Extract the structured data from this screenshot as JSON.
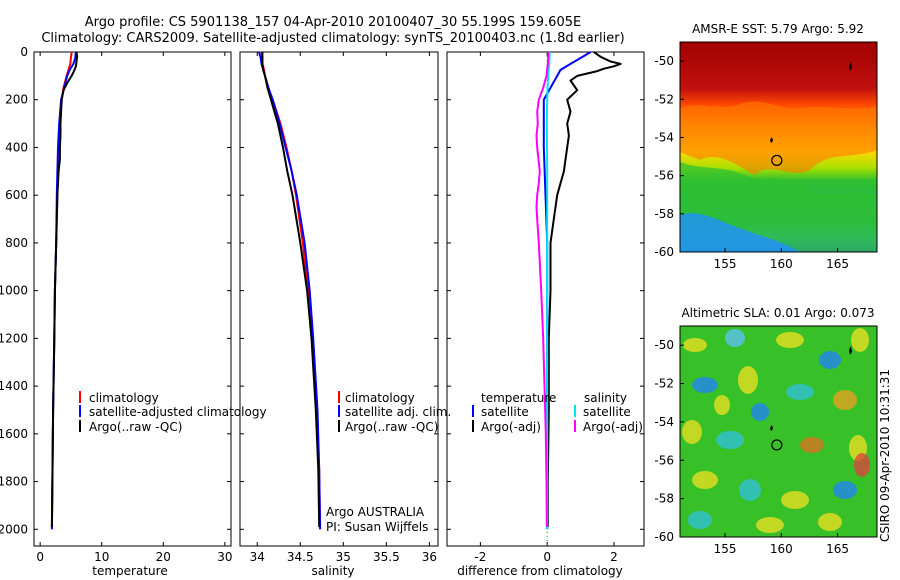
{
  "header": {
    "line1": "Argo profile: CS 5901138_157 04-Apr-2010 20100407_30 55.199S 159.605E",
    "line2": "Climatology: CARS2009. Satellite-adjusted climatology: synTS_20100403.nc (1.8d earlier)"
  },
  "credits": {
    "project": "Argo AUSTRALIA",
    "pi": "PI: Susan Wijffels",
    "stamp": "CSIRO 09-Apr-2010 10:31:31"
  },
  "colors": {
    "climatology": "#ff0000",
    "satellite": "#0000ff",
    "argo": "#000000",
    "salinity_satellite": "#00e5ee",
    "salinity_argo": "#ff00ff",
    "zero_line": "#00aa00"
  },
  "chart_data": [
    {
      "type": "line",
      "xlabel": "temperature",
      "ylabel": "",
      "xlim": [
        -1,
        31
      ],
      "ylim": [
        2070,
        0
      ],
      "xticks": [
        0,
        10,
        20,
        30
      ],
      "yticks": [
        0,
        200,
        400,
        600,
        800,
        1000,
        1200,
        1400,
        1600,
        1800,
        2000
      ],
      "legend_placement": "bottom-right",
      "series": [
        {
          "name": "climatology",
          "color": "#ff0000",
          "depth": [
            0,
            25,
            50,
            75,
            100,
            150,
            200,
            300,
            400,
            500,
            600,
            800,
            1000,
            1200,
            1500,
            1750,
            2000
          ],
          "values": [
            5.1,
            5.0,
            4.9,
            4.6,
            4.3,
            3.8,
            3.5,
            3.2,
            3.0,
            2.9,
            2.8,
            2.6,
            2.4,
            2.3,
            2.1,
            2.0,
            1.9
          ]
        },
        {
          "name": "satellite-adjusted climatology",
          "color": "#0000ff",
          "depth": [
            0,
            25,
            50,
            75,
            100,
            150,
            200,
            300,
            400,
            500,
            600,
            800,
            1000,
            1200,
            1500,
            1750,
            2000
          ],
          "values": [
            5.8,
            5.7,
            5.4,
            4.8,
            4.4,
            3.9,
            3.4,
            3.1,
            2.9,
            2.8,
            2.7,
            2.6,
            2.4,
            2.3,
            2.1,
            2.0,
            1.9
          ]
        },
        {
          "name": "Argo(..raw -QC)",
          "color": "#000000",
          "depth": [
            0,
            20,
            40,
            60,
            80,
            100,
            130,
            160,
            200,
            250,
            300,
            350,
            400,
            450,
            500,
            600,
            800,
            1000,
            1200,
            1500,
            1750,
            1990
          ],
          "values": [
            5.9,
            6.0,
            5.9,
            5.8,
            5.5,
            5.1,
            4.4,
            3.8,
            3.5,
            3.4,
            3.3,
            3.3,
            3.2,
            3.2,
            3.0,
            2.8,
            2.6,
            2.4,
            2.3,
            2.1,
            2.0,
            1.9
          ]
        }
      ]
    },
    {
      "type": "line",
      "xlabel": "salinity",
      "ylabel": "",
      "xlim": [
        33.8,
        36.1
      ],
      "ylim": [
        2070,
        0
      ],
      "xticks": [
        34,
        34.5,
        35,
        35.5,
        36
      ],
      "legend_placement": "bottom-right",
      "series": [
        {
          "name": "climatology",
          "color": "#ff0000",
          "depth": [
            0,
            25,
            50,
            75,
            100,
            150,
            200,
            300,
            400,
            500,
            600,
            800,
            1000,
            1200,
            1500,
            1750,
            2000
          ],
          "values": [
            34.05,
            34.06,
            34.06,
            34.08,
            34.09,
            34.13,
            34.18,
            34.27,
            34.34,
            34.4,
            34.45,
            34.53,
            34.59,
            34.64,
            34.69,
            34.72,
            34.73
          ]
        },
        {
          "name": "satellite adj. clim.",
          "color": "#0000ff",
          "depth": [
            0,
            25,
            50,
            75,
            100,
            150,
            200,
            300,
            400,
            500,
            600,
            800,
            1000,
            1200,
            1500,
            1750,
            2000
          ],
          "values": [
            34.02,
            34.04,
            34.05,
            34.07,
            34.09,
            34.13,
            34.18,
            34.26,
            34.33,
            34.4,
            34.46,
            34.55,
            34.61,
            34.65,
            34.7,
            34.72,
            34.73
          ]
        },
        {
          "name": "Argo(..raw -QC)",
          "color": "#000000",
          "depth": [
            0,
            25,
            50,
            75,
            100,
            150,
            200,
            250,
            300,
            400,
            500,
            600,
            800,
            1000,
            1200,
            1500,
            1750,
            1990
          ],
          "values": [
            34.06,
            34.06,
            34.06,
            34.07,
            34.09,
            34.12,
            34.16,
            34.2,
            34.24,
            34.3,
            34.35,
            34.41,
            34.5,
            34.58,
            34.63,
            34.68,
            34.71,
            34.72
          ]
        }
      ]
    },
    {
      "type": "line",
      "xlabel": "difference from climatology",
      "ylabel": "",
      "xlim": [
        -3,
        2.9
      ],
      "ylim": [
        2070,
        0
      ],
      "xticks": [
        -2,
        0,
        2
      ],
      "legend_placement": "bottom",
      "legend_groups": [
        "temperature",
        "salinity"
      ],
      "series": [
        {
          "name": "satellite",
          "group": "temperature",
          "color": "#0000ff",
          "depth": [
            0,
            25,
            50,
            75,
            100,
            150,
            200,
            300,
            400,
            600,
            800,
            1000,
            1500,
            2000
          ],
          "values": [
            1.3,
            1.0,
            0.7,
            0.4,
            0.3,
            0.1,
            -0.1,
            -0.1,
            -0.1,
            -0.05,
            0,
            0,
            0,
            0
          ]
        },
        {
          "name": "Argo(-adj)",
          "group": "temperature",
          "color": "#000000",
          "depth": [
            0,
            20,
            40,
            50,
            60,
            70,
            80,
            90,
            100,
            120,
            140,
            160,
            200,
            250,
            300,
            350,
            400,
            450,
            500,
            550,
            600,
            700,
            800,
            1000,
            1200,
            1500,
            1800,
            1990
          ],
          "values": [
            1.4,
            1.6,
            1.9,
            2.2,
            2.0,
            1.7,
            1.5,
            1.2,
            0.9,
            0.7,
            0.8,
            0.9,
            0.6,
            0.7,
            0.6,
            0.65,
            0.6,
            0.55,
            0.5,
            0.4,
            0.3,
            0.2,
            0.1,
            0.1,
            0.05,
            0.05,
            0.02,
            0.02
          ]
        },
        {
          "name": "satellite",
          "group": "salinity",
          "color": "#00e5ee",
          "depth": [
            0,
            50,
            100,
            150,
            200,
            300,
            500,
            1000,
            1500,
            2000
          ],
          "values": [
            0.08,
            0.06,
            0.03,
            0.01,
            0.0,
            -0.01,
            0.0,
            0.0,
            0.0,
            0.0
          ]
        },
        {
          "name": "Argo(-adj)",
          "group": "salinity",
          "color": "#ff00ff",
          "depth": [
            0,
            50,
            100,
            150,
            200,
            250,
            300,
            350,
            400,
            450,
            500,
            550,
            600,
            650,
            700,
            800,
            1000,
            1200,
            1400,
            1600,
            1800,
            1990
          ],
          "values": [
            0.04,
            0.02,
            -0.02,
            -0.12,
            -0.25,
            -0.3,
            -0.28,
            -0.32,
            -0.3,
            -0.26,
            -0.22,
            -0.25,
            -0.3,
            -0.32,
            -0.3,
            -0.25,
            -0.18,
            -0.12,
            -0.08,
            -0.04,
            -0.02,
            -0.01
          ]
        }
      ]
    },
    {
      "type": "heatmap",
      "title": "AMSR-E SST: 5.79 Argo: 5.92",
      "xlim": [
        151,
        168.5
      ],
      "ylim": [
        -60,
        -49
      ],
      "xticks": [
        155,
        160,
        165
      ],
      "yticks": [
        -50,
        -52,
        -54,
        -56,
        -58,
        -60
      ],
      "marker": {
        "lon": 159.6,
        "lat": -55.2
      },
      "field": "sea surface temperature"
    },
    {
      "type": "heatmap",
      "title": "Altimetric SLA: 0.01 Argo: 0.073",
      "xlim": [
        151,
        168.5
      ],
      "ylim": [
        -60,
        -49
      ],
      "xticks": [
        155,
        160,
        165
      ],
      "yticks": [
        -50,
        -52,
        -54,
        -56,
        -58,
        -60
      ],
      "marker": {
        "lon": 159.6,
        "lat": -55.2
      },
      "field": "sea level anomaly"
    }
  ]
}
